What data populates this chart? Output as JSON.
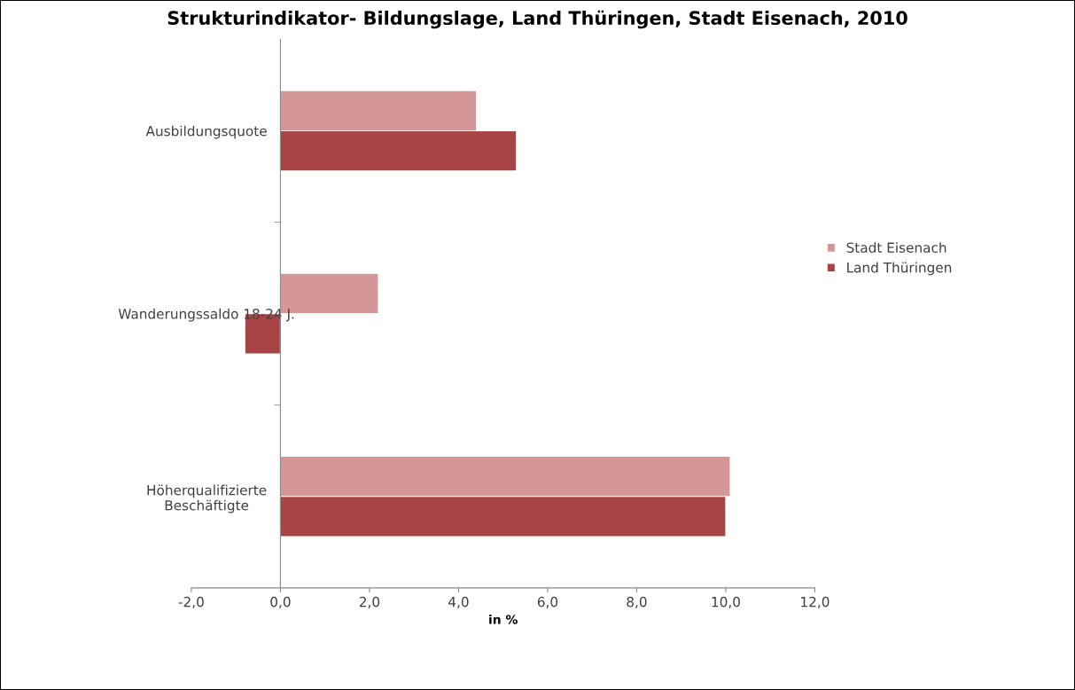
{
  "chart_data": {
    "type": "bar",
    "orientation": "horizontal",
    "title": "Strukturindikator- Bildungslage, Land Thüringen, Stadt Eisenach, 2010",
    "xlabel": "in %",
    "categories": [
      "Ausbildungsquote",
      "Wanderungssaldo 18-24 J.",
      "Höherqualifizierte\nBeschäftigte"
    ],
    "series": [
      {
        "name": "Stadt Eisenach",
        "color": "#d49697",
        "values": [
          4.4,
          2.2,
          10.1
        ]
      },
      {
        "name": "Land Thüringen",
        "color": "#a84446",
        "values": [
          5.3,
          -0.8,
          10.0
        ]
      }
    ],
    "xlim": [
      -2,
      12
    ],
    "xticks": [
      {
        "value": -2,
        "label": "-2,0"
      },
      {
        "value": 0,
        "label": "0,0"
      },
      {
        "value": 2,
        "label": "2,0"
      },
      {
        "value": 4,
        "label": "4,0"
      },
      {
        "value": 6,
        "label": "6,0"
      },
      {
        "value": 8,
        "label": "8,0"
      },
      {
        "value": 10,
        "label": "10,0"
      },
      {
        "value": 12,
        "label": "12,0"
      }
    ],
    "legend": "right"
  }
}
